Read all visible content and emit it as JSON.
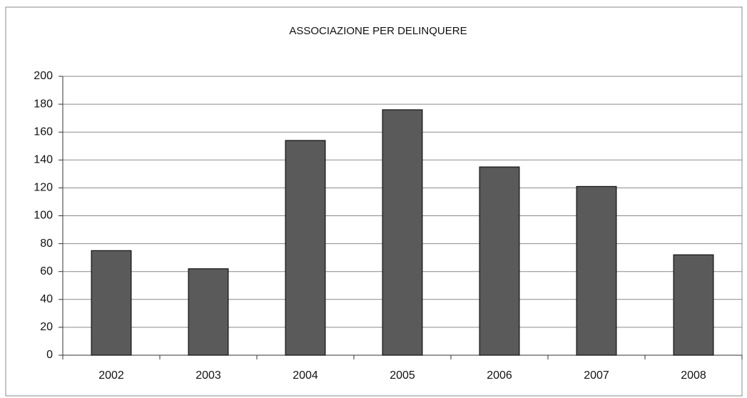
{
  "chart_data": {
    "type": "bar",
    "title": "ASSOCIAZIONE PER DELINQUERE",
    "categories": [
      "2002",
      "2003",
      "2004",
      "2005",
      "2006",
      "2007",
      "2008"
    ],
    "values": [
      75,
      62,
      154,
      176,
      135,
      121,
      72
    ],
    "color": "#5a5a5a",
    "ylim": [
      0,
      200
    ],
    "yticks": [
      0,
      20,
      40,
      60,
      80,
      100,
      120,
      140,
      160,
      180,
      200
    ],
    "grid": true
  }
}
